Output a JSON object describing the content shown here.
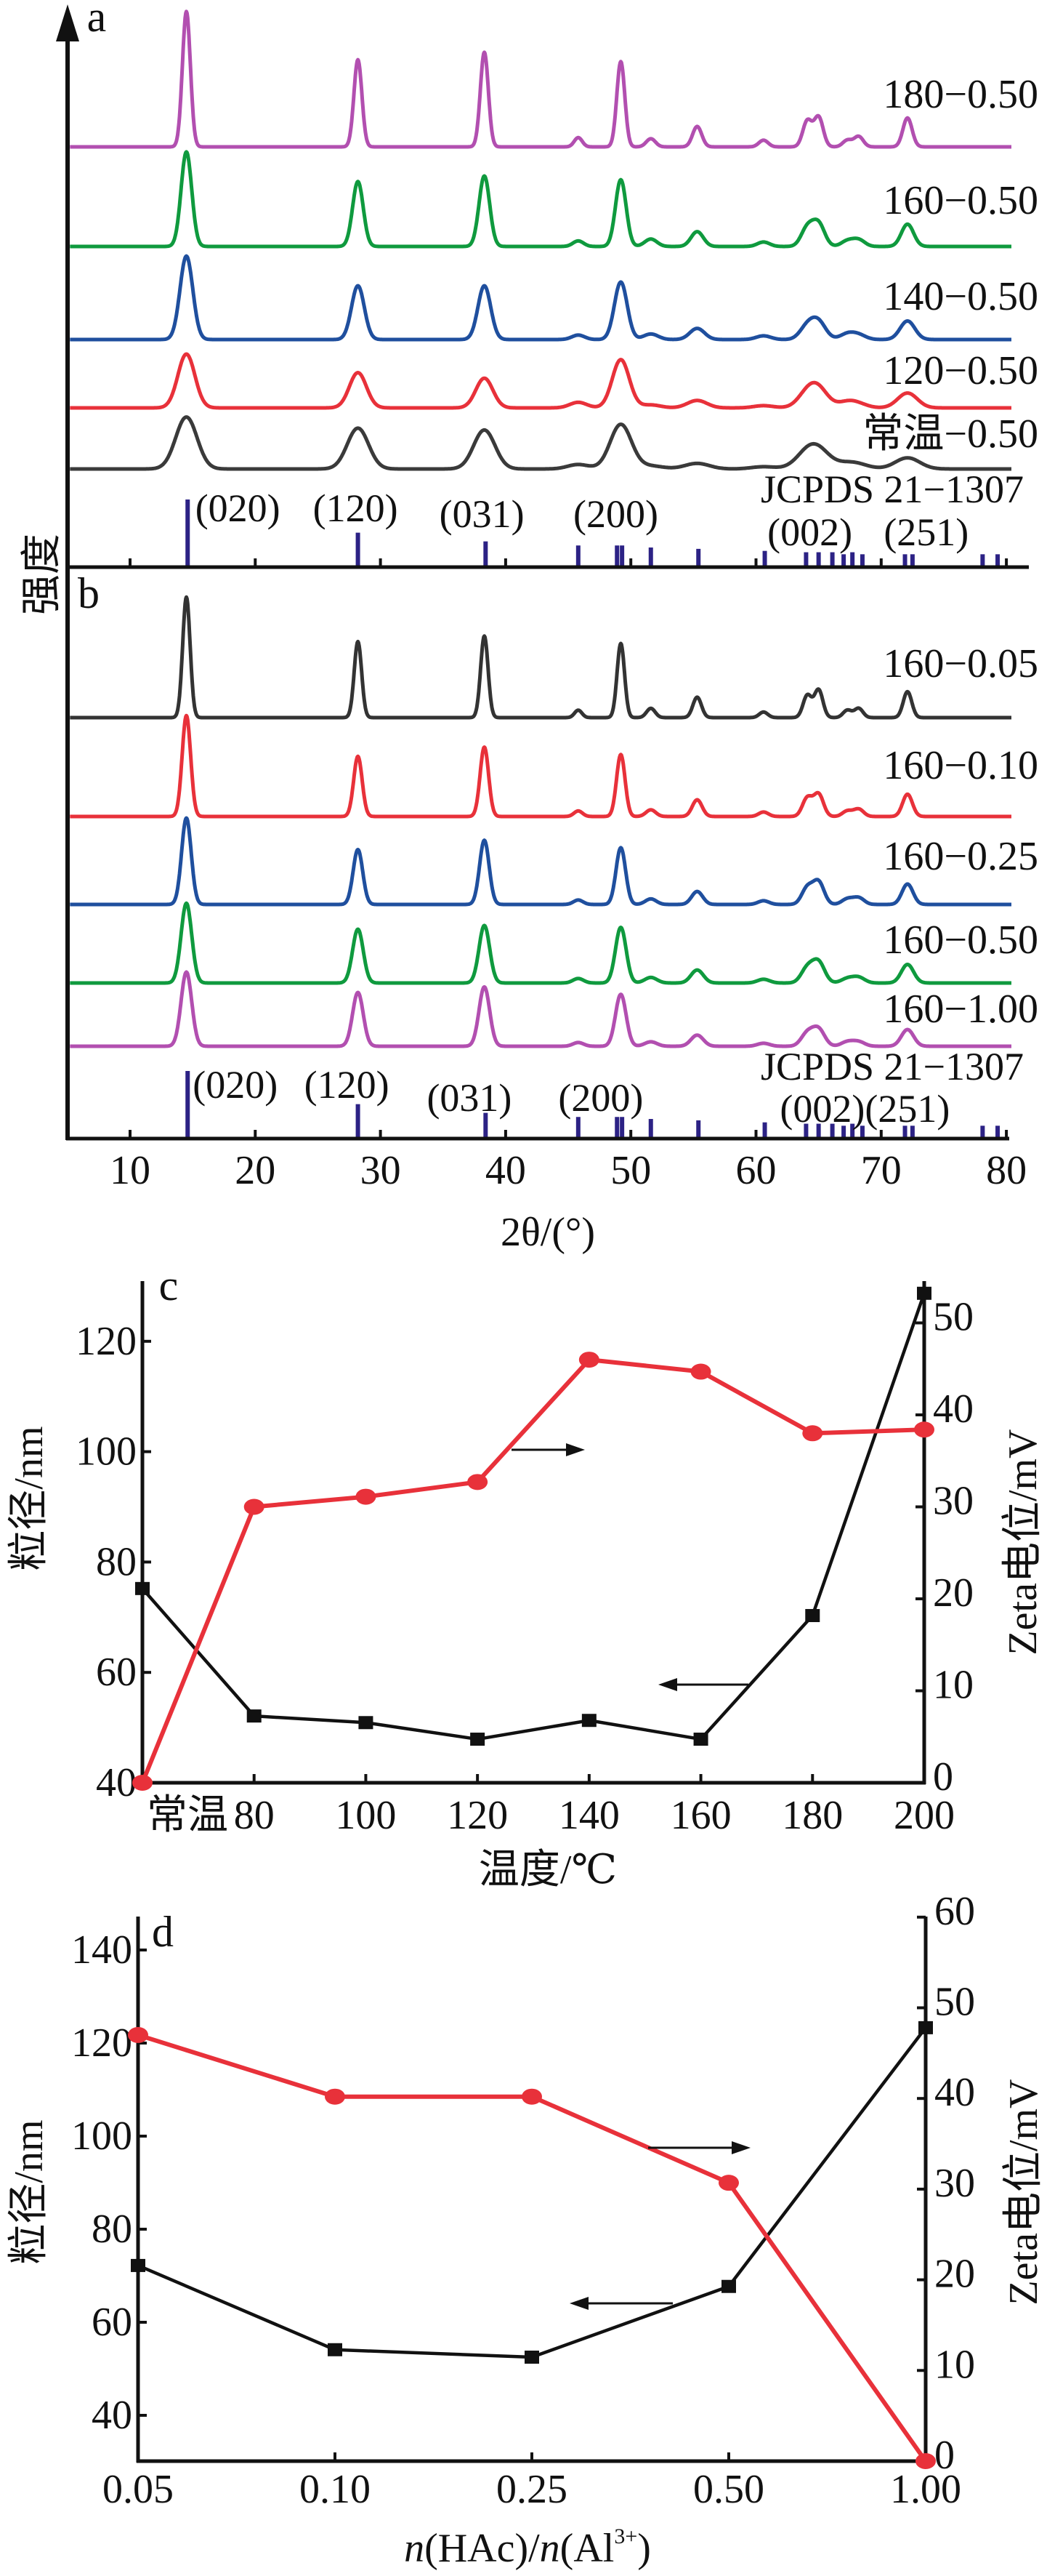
{
  "chart_data": [
    {
      "panel": "a",
      "type": "line",
      "panel_label": "a",
      "ylabel": "强度",
      "xlim": [
        5,
        81
      ],
      "xticks": [
        10,
        20,
        30,
        40,
        50,
        60,
        70,
        80
      ],
      "peak_positions": [
        14.5,
        28.2,
        38.3,
        45.8,
        49.2,
        51.6,
        55.3,
        60.6,
        64.1,
        65.0,
        67.3,
        68.2,
        72.1
      ],
      "series": [
        {
          "name": "180−0.50",
          "color": "#b24fb0",
          "fwhm": 0.75,
          "intensities": [
            365,
            235,
            255,
            25,
            230,
            22,
            55,
            18,
            70,
            80,
            18,
            28,
            78
          ]
        },
        {
          "name": "160−0.50",
          "color": "#0f9a3e",
          "fwhm": 1.0,
          "intensities": [
            255,
            175,
            190,
            15,
            180,
            20,
            40,
            12,
            50,
            60,
            15,
            18,
            60
          ]
        },
        {
          "name": "140−0.50",
          "color": "#1f4f9e",
          "fwhm": 1.2,
          "intensities": [
            225,
            145,
            145,
            12,
            155,
            15,
            30,
            10,
            35,
            45,
            15,
            12,
            50
          ]
        },
        {
          "name": "120−0.50",
          "color": "#e8313a",
          "fwhm": 1.6,
          "intensities": [
            145,
            95,
            80,
            15,
            130,
            8,
            20,
            6,
            35,
            45,
            15,
            8,
            40
          ]
        },
        {
          "name": "常温−0.50",
          "color": "#3a3a3a",
          "fwhm": 2.0,
          "intensities": [
            140,
            110,
            105,
            12,
            120,
            8,
            15,
            6,
            35,
            40,
            12,
            8,
            30
          ]
        }
      ],
      "reference": {
        "name": "JCPDS 21−1307",
        "color": "#2c2285",
        "positions": [
          14.6,
          28.2,
          38.4,
          45.8,
          48.9,
          49.3,
          51.6,
          55.4,
          60.7,
          64.0,
          65.0,
          66.1,
          67.0,
          67.7,
          68.5,
          71.9,
          72.5,
          78.1,
          79.3
        ],
        "intensities": [
          100,
          51,
          38,
          32,
          32,
          32,
          29,
          27,
          24,
          22,
          22,
          22,
          19,
          22,
          19,
          19,
          19,
          19,
          19
        ]
      },
      "hkl_labels": [
        {
          "label": "(020)",
          "x": 18.6
        },
        {
          "label": "(120)",
          "x": 28.0
        },
        {
          "label": "(031)",
          "x": 38.1
        },
        {
          "label": "(200)",
          "x": 48.8
        },
        {
          "label": "(002)",
          "x": 64.3
        },
        {
          "label": "(251)",
          "x": 73.6
        }
      ]
    },
    {
      "panel": "b",
      "type": "line",
      "panel_label": "b",
      "xlabel": "2θ/(°)",
      "xlim": [
        5,
        81
      ],
      "xticks": [
        10,
        20,
        30,
        40,
        50,
        60,
        70,
        80
      ],
      "peak_positions": [
        14.5,
        28.2,
        38.3,
        45.8,
        49.2,
        51.6,
        55.3,
        60.6,
        64.1,
        65.0,
        67.3,
        68.2,
        72.1
      ],
      "series": [
        {
          "name": "160−0.05",
          "color": "#333333",
          "fwhm": 0.7,
          "intensities": [
            325,
            205,
            220,
            20,
            200,
            25,
            55,
            15,
            60,
            75,
            20,
            25,
            70
          ]
        },
        {
          "name": "160−0.10",
          "color": "#e8313a",
          "fwhm": 0.8,
          "intensities": [
            272,
            162,
            187,
            15,
            167,
            18,
            45,
            12,
            50,
            60,
            15,
            20,
            60
          ]
        },
        {
          "name": "160−0.25",
          "color": "#1f4f9e",
          "fwhm": 0.9,
          "intensities": [
            233,
            148,
            173,
            12,
            153,
            15,
            35,
            10,
            45,
            60,
            15,
            18,
            55
          ]
        },
        {
          "name": "160−0.50",
          "color": "#0f9a3e",
          "fwhm": 1.0,
          "intensities": [
            215,
            145,
            155,
            12,
            150,
            15,
            35,
            10,
            40,
            55,
            12,
            15,
            50
          ]
        },
        {
          "name": "160−1.00",
          "color": "#b24fb0",
          "fwhm": 1.0,
          "intensities": [
            200,
            145,
            160,
            10,
            140,
            12,
            30,
            8,
            35,
            45,
            12,
            12,
            45
          ]
        }
      ],
      "reference": {
        "name": "JCPDS 21−1307",
        "color": "#2c2285",
        "positions": [
          14.6,
          28.2,
          38.4,
          45.8,
          48.9,
          49.3,
          51.6,
          55.4,
          60.7,
          64.0,
          65.0,
          66.1,
          67.0,
          67.7,
          68.5,
          71.9,
          72.5,
          78.1,
          79.3
        ],
        "intensities": [
          100,
          51,
          38,
          32,
          32,
          32,
          29,
          27,
          24,
          22,
          22,
          22,
          19,
          22,
          19,
          19,
          19,
          19,
          19
        ]
      },
      "hkl_labels": [
        {
          "label": "(020)",
          "x": 18.4
        },
        {
          "label": "(120)",
          "x": 27.3
        },
        {
          "label": "(031)",
          "x": 37.1
        },
        {
          "label": "(200)",
          "x": 47.6
        },
        {
          "label": "(002)(251)",
          "x": 68.7
        }
      ]
    },
    {
      "panel": "c",
      "type": "line",
      "panel_label": "c",
      "xlabel": "温度/℃",
      "ylabel": "粒径/nm",
      "ylabel_right": "Zeta电位/mV",
      "categories": [
        "常温",
        "80",
        "100",
        "120",
        "140",
        "160",
        "180",
        "200"
      ],
      "ylim": [
        40,
        131
      ],
      "yticks": [
        40,
        60,
        80,
        100,
        120
      ],
      "ylim_right": [
        0,
        54.5
      ],
      "yticks_right": [
        0,
        10,
        20,
        30,
        40,
        50
      ],
      "series": [
        {
          "axis": "left",
          "marker": "square",
          "color": "#111111",
          "values": [
            75.2,
            52.1,
            50.9,
            47.9,
            51.3,
            47.9,
            70.3,
            128.7
          ]
        },
        {
          "axis": "right",
          "marker": "circle",
          "color": "#e8313a",
          "values": [
            0,
            30.0,
            31.1,
            32.7,
            46.0,
            44.7,
            38.0,
            38.4
          ]
        }
      ]
    },
    {
      "panel": "d",
      "type": "line",
      "panel_label": "d",
      "xlabel_parts": [
        "n",
        "(HAc)/",
        "n",
        "(Al",
        "3+",
        ")"
      ],
      "ylabel": "粒径/nm",
      "ylabel_right": "Zeta电位/mV",
      "categories": [
        "0.05",
        "0.10",
        "0.25",
        "0.50",
        "1.00"
      ],
      "ylim": [
        30,
        148
      ],
      "yticks": [
        40,
        60,
        80,
        100,
        120,
        140
      ],
      "ylim_right": [
        0,
        60
      ],
      "yticks_right": [
        0,
        10,
        20,
        30,
        40,
        50,
        60
      ],
      "series": [
        {
          "axis": "left",
          "marker": "square",
          "color": "#111111",
          "values": [
            72.2,
            54.1,
            52.5,
            67.7,
            123.3
          ]
        },
        {
          "axis": "right",
          "marker": "circle",
          "color": "#e8313a",
          "values": [
            47.0,
            40.2,
            40.2,
            30.7,
            0
          ]
        }
      ]
    }
  ]
}
